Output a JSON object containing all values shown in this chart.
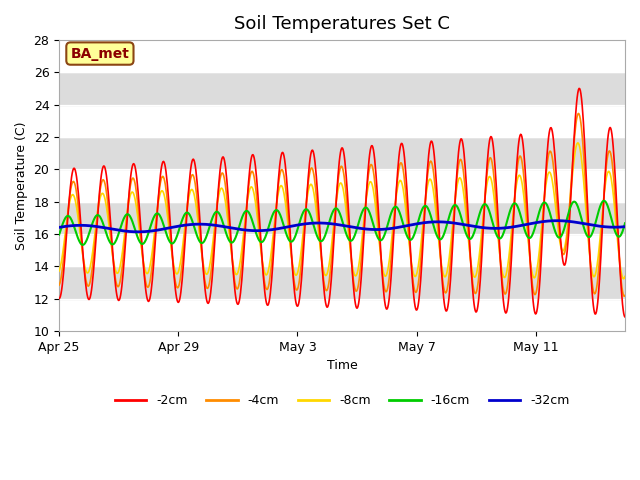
{
  "title": "Soil Temperatures Set C",
  "xlabel": "Time",
  "ylabel": "Soil Temperature (C)",
  "ylim": [
    10,
    28
  ],
  "yticks": [
    10,
    12,
    14,
    16,
    18,
    20,
    22,
    24,
    26,
    28
  ],
  "annotation": "BA_met",
  "annotation_color": "#8B0000",
  "annotation_bg": "#FFFF99",
  "annotation_border": "#8B4513",
  "colors": {
    "-2cm": "#FF0000",
    "-4cm": "#FF8C00",
    "-8cm": "#FFD700",
    "-16cm": "#00CC00",
    "-32cm": "#0000CD"
  },
  "legend_labels": [
    "-2cm",
    "-4cm",
    "-8cm",
    "-16cm",
    "-32cm"
  ],
  "bg_band_color": "#DCDCDC",
  "plot_bg": "#F0F0F0",
  "n_days": 19,
  "samples_per_day": 48,
  "tick_positions": [
    0,
    4,
    8,
    12,
    16
  ],
  "tick_labels": [
    "Apr 25",
    "Apr 29",
    "May 3",
    "May 7",
    "May 11"
  ]
}
